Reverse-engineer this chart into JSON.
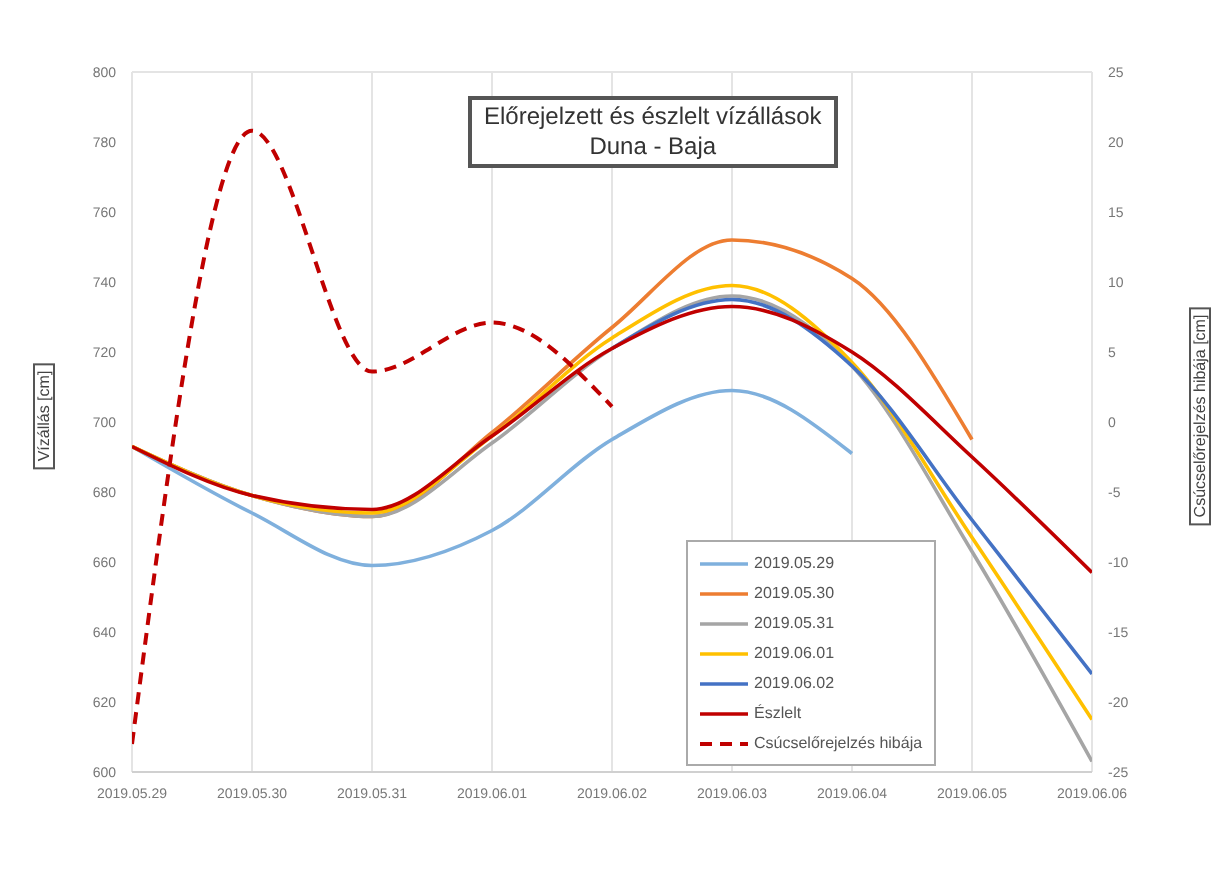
{
  "chart_data": {
    "type": "line",
    "title": "Előrejelzett és észlelt vízállások",
    "subtitle": "Duna - Baja",
    "ylabel": "Vízállás [cm]",
    "y2label": "Csúcselőrejelzés hibája [cm]",
    "x": [
      "2019-05-29",
      "2019-05-30",
      "2019-05-31",
      "2019-06-01",
      "2019-06-02",
      "2019-06-03",
      "2019-06-04",
      "2019-06-05",
      "2019-06-06"
    ],
    "xlim": [
      "2019-05-29",
      "2019-06-06"
    ],
    "xticks": [
      {
        "value": "2019-05-29",
        "label": "2019.05.29"
      },
      {
        "value": "2019-05-30",
        "label": "2019.05.30"
      },
      {
        "value": "2019-05-31",
        "label": "2019.05.31"
      },
      {
        "value": "2019-06-01",
        "label": "2019.06.01"
      },
      {
        "value": "2019-06-02",
        "label": "2019.06.02"
      },
      {
        "value": "2019-06-03",
        "label": "2019.06.03"
      },
      {
        "value": "2019-06-04",
        "label": "2019.06.04"
      },
      {
        "value": "2019-06-05",
        "label": "2019.06.05"
      },
      {
        "value": "2019-06-06",
        "label": "2019.06.06"
      }
    ],
    "ylim": [
      600,
      800
    ],
    "yticks": [
      600,
      620,
      640,
      660,
      680,
      700,
      720,
      740,
      760,
      780,
      800
    ],
    "y2lim": [
      -25,
      25
    ],
    "y2ticks": [
      -25,
      -20,
      -15,
      -10,
      -5,
      0,
      5,
      10,
      15,
      20,
      25
    ],
    "grid": true,
    "legend": "bottom",
    "marker": "none",
    "series": [
      {
        "name": "2019.05.29",
        "color": "#7fb0dd",
        "values": [
          693,
          674,
          659,
          669,
          695,
          709,
          691,
          null,
          null
        ]
      },
      {
        "name": "2019.05.30",
        "color": "#ed7d31",
        "values": [
          693,
          679,
          673,
          697,
          727,
          752,
          741,
          695,
          null
        ]
      },
      {
        "name": "2019.05.31",
        "color": "#a5a5a5",
        "values": [
          693,
          679,
          673,
          694,
          721,
          736,
          716,
          663,
          603
        ]
      },
      {
        "name": "2019.06.01",
        "color": "#ffc000",
        "values": [
          693,
          679,
          674,
          696,
          724,
          739,
          717,
          667,
          615
        ]
      },
      {
        "name": "2019.06.02",
        "color": "#4472c4",
        "values": [
          null,
          null,
          null,
          null,
          721,
          735,
          716,
          672,
          628
        ]
      },
      {
        "name": "Észlelt",
        "color": "#c00000",
        "values": [
          693,
          679,
          675,
          696,
          721,
          733,
          720,
          690,
          657
        ]
      },
      {
        "name": "Csúcselőrejelzés hibája",
        "color": "#c00000",
        "axis": "y2",
        "line_style": "dashed",
        "values": [
          -23,
          20.8,
          3.6,
          7.1,
          1.1,
          null,
          null,
          null,
          null
        ]
      }
    ]
  }
}
